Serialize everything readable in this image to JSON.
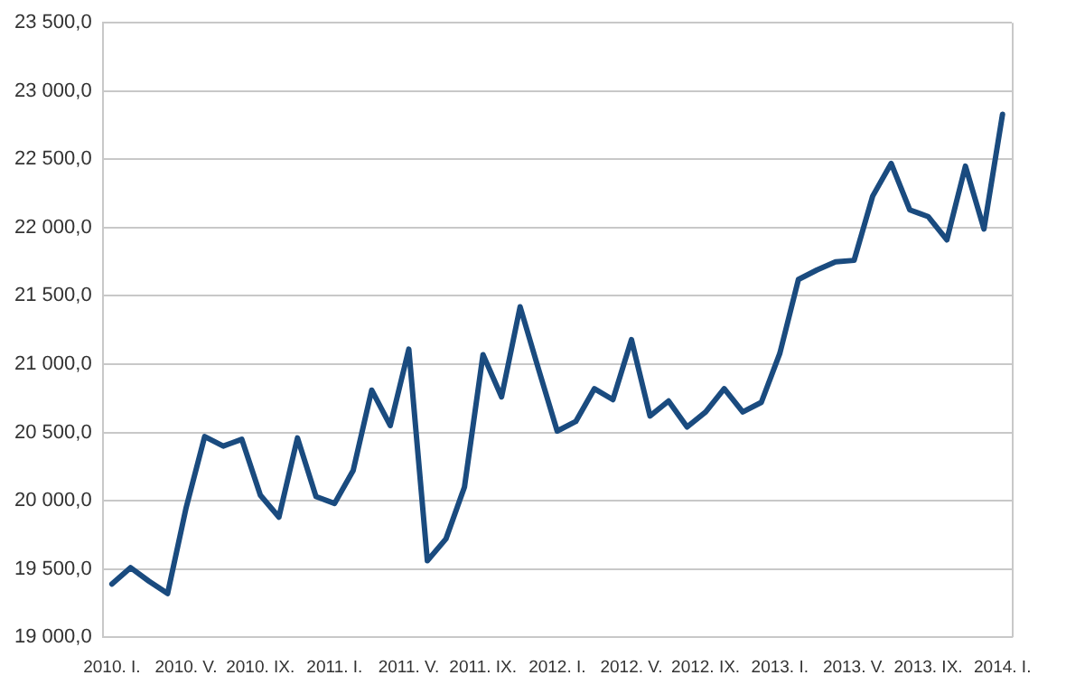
{
  "chart_data": {
    "type": "line",
    "categories": [
      "2010. I.",
      null,
      null,
      null,
      "2010. V.",
      null,
      null,
      null,
      "2010. IX.",
      null,
      null,
      null,
      "2011. I.",
      null,
      null,
      null,
      "2011. V.",
      null,
      null,
      null,
      "2011. IX.",
      null,
      null,
      null,
      "2012. I.",
      null,
      null,
      null,
      "2012. V.",
      null,
      null,
      null,
      "2012. IX.",
      null,
      null,
      null,
      "2013. I.",
      null,
      null,
      null,
      "2013. V.",
      null,
      null,
      null,
      "2013. IX.",
      null,
      null,
      null,
      "2014. I."
    ],
    "series": [
      {
        "color": "#1a4b7f",
        "values": [
          19390,
          19510,
          19410,
          19320,
          19950,
          20470,
          20400,
          20450,
          20040,
          19880,
          20460,
          20030,
          19980,
          20220,
          20810,
          20550,
          21110,
          19560,
          19720,
          20100,
          21070,
          20760,
          21420,
          20960,
          20510,
          20580,
          20820,
          20740,
          21180,
          20620,
          20730,
          20540,
          20650,
          20820,
          20650,
          20720,
          21080,
          21620,
          21690,
          21750,
          21760,
          22230,
          22470,
          22130,
          22080,
          21910,
          22450,
          21990,
          22830
        ]
      }
    ],
    "ylim": [
      19000,
      23500
    ],
    "yticks": [
      {
        "value": 19000,
        "label": "19 000,0"
      },
      {
        "value": 19500,
        "label": "19 500,0"
      },
      {
        "value": 20000,
        "label": "20 000,0"
      },
      {
        "value": 20500,
        "label": "20 500,0"
      },
      {
        "value": 21000,
        "label": "21 000,0"
      },
      {
        "value": 21500,
        "label": "21 500,0"
      },
      {
        "value": 22000,
        "label": "22 000,0"
      },
      {
        "value": 22500,
        "label": "22 500,0"
      },
      {
        "value": 23000,
        "label": "23 000,0"
      },
      {
        "value": 23500,
        "label": "23 500,0"
      }
    ],
    "grid": "y",
    "legend": false,
    "marker": "none",
    "line_style": "solid"
  }
}
